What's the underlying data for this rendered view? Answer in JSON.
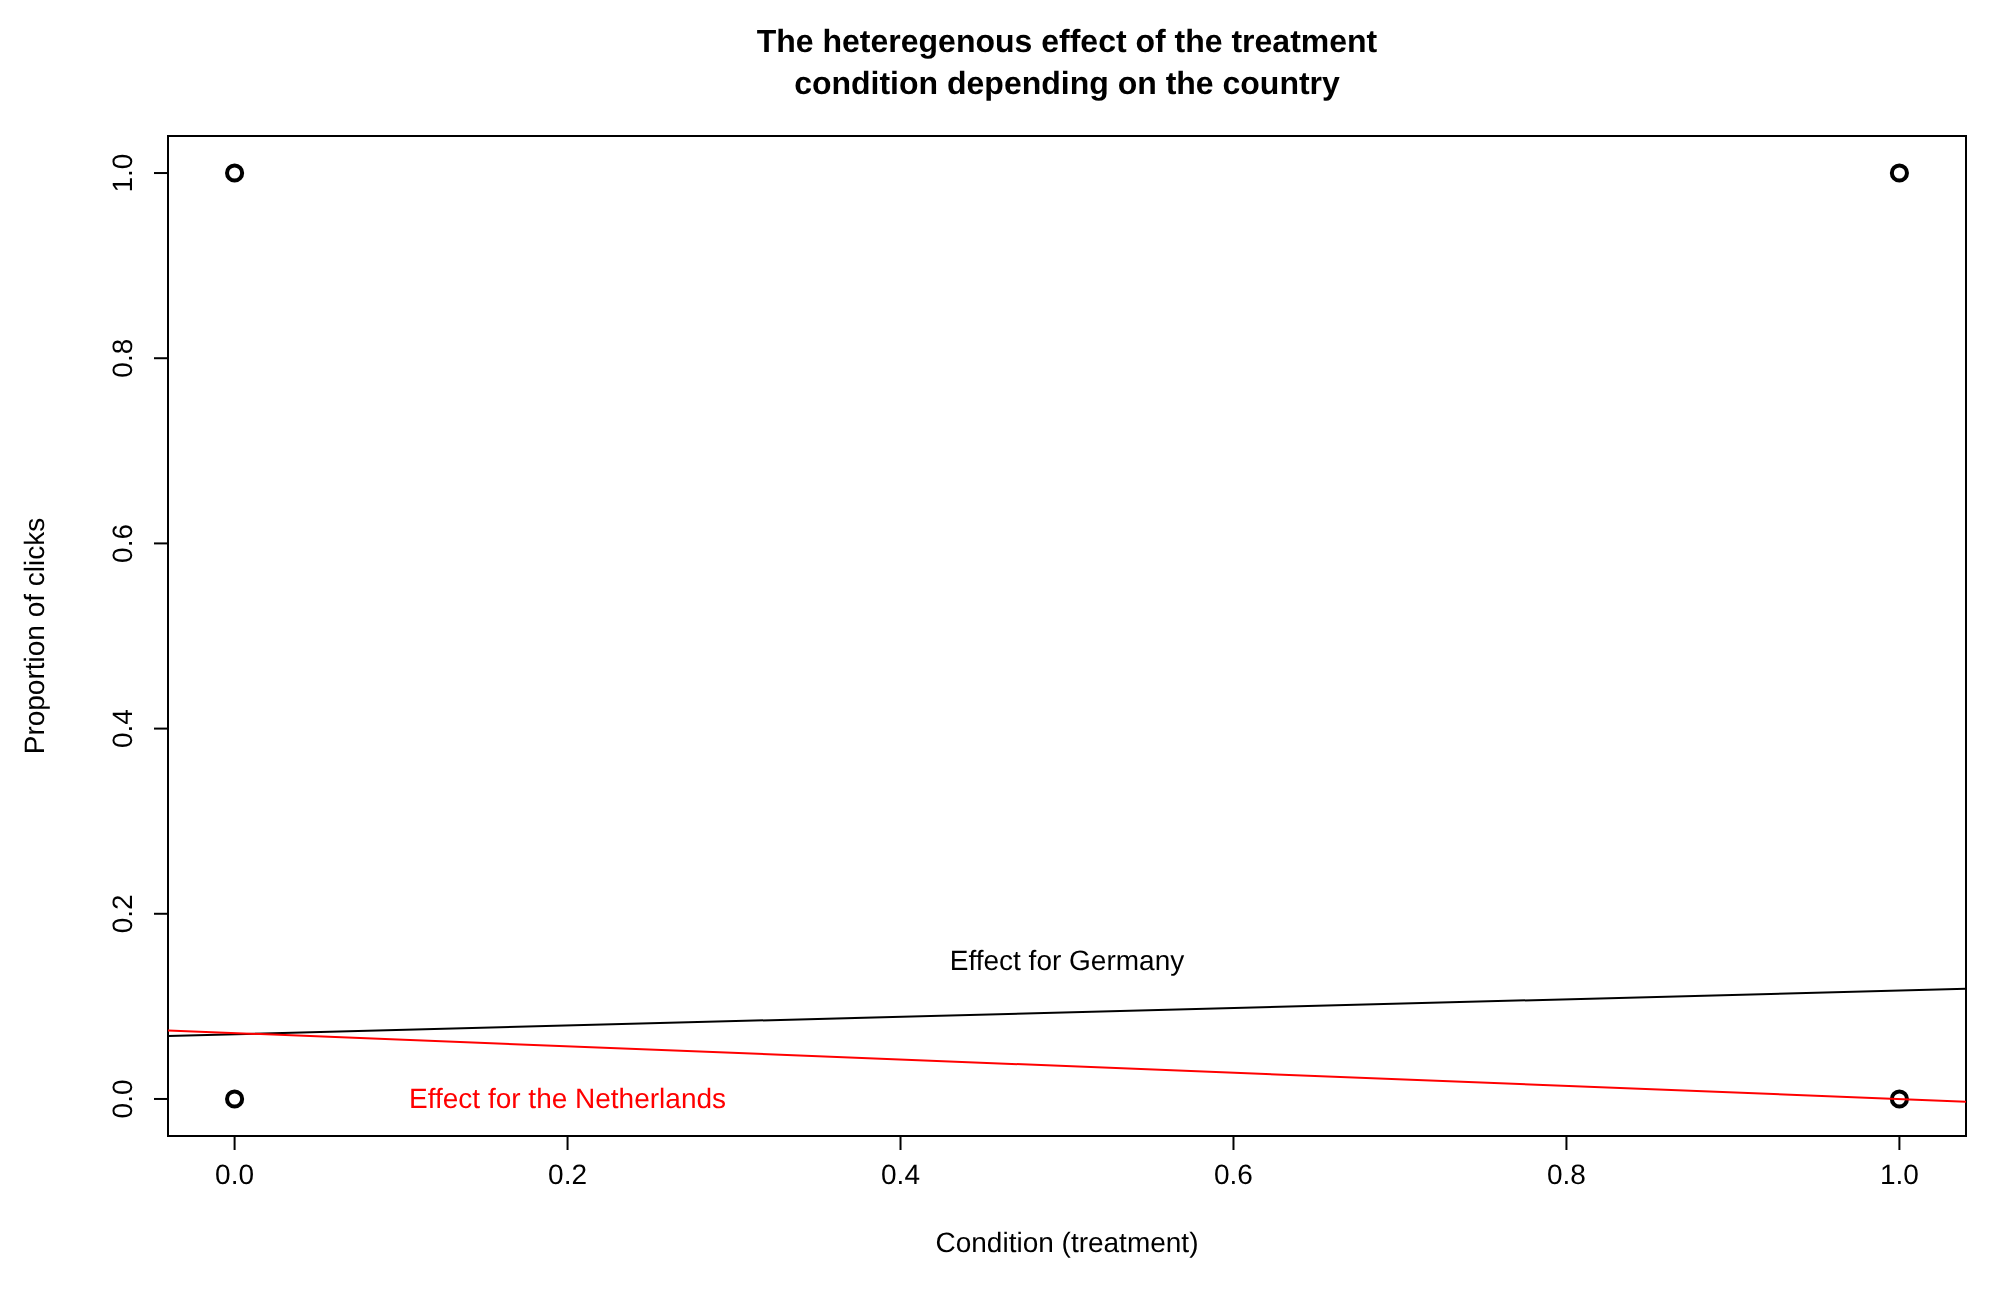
{
  "chart_data": {
    "type": "scatter",
    "title": "The heteregenous effect of the treatment\ncondition depending on the country",
    "xlabel": "Condition (treatment)",
    "ylabel": "Proportion of clicks",
    "xlim": [
      -0.04,
      1.04
    ],
    "ylim": [
      -0.04,
      1.04
    ],
    "xticks": [
      {
        "value": 0,
        "label": "0.0"
      },
      {
        "value": 0.2,
        "label": "0.2"
      },
      {
        "value": 0.4,
        "label": "0.4"
      },
      {
        "value": 0.6,
        "label": "0.6"
      },
      {
        "value": 0.8,
        "label": "0.8"
      },
      {
        "value": 1,
        "label": "1.0"
      }
    ],
    "yticks": [
      {
        "value": 0,
        "label": "0.0"
      },
      {
        "value": 0.2,
        "label": "0.2"
      },
      {
        "value": 0.4,
        "label": "0.4"
      },
      {
        "value": 0.6,
        "label": "0.6"
      },
      {
        "value": 0.8,
        "label": "0.8"
      },
      {
        "value": 1,
        "label": "1.0"
      }
    ],
    "grid": false,
    "legend": false,
    "series": [
      {
        "color": "#000000",
        "marker": "circle",
        "x": [
          0,
          0,
          1,
          1
        ],
        "values": [
          0,
          1,
          0,
          1
        ]
      },
      {
        "type": "line",
        "name": "Effect for Germany",
        "color": "#000000",
        "x": [
          -0.04,
          1.04
        ],
        "values": [
          0.068,
          0.119
        ]
      },
      {
        "type": "line",
        "name": "Effect for the Netherlands",
        "color": "#ff0000",
        "x": [
          -0.04,
          1.04
        ],
        "values": [
          0.074,
          -0.003
        ]
      }
    ]
  }
}
